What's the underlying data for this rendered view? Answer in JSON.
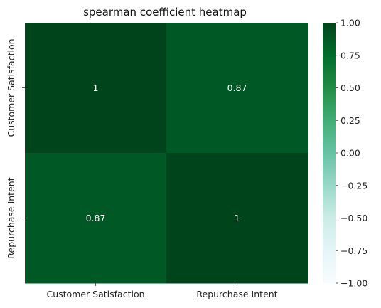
{
  "chart_data": {
    "type": "heatmap",
    "title": "spearman coefficient heatmap",
    "x_categories": [
      "Customer Satisfaction",
      "Repurchase Intent"
    ],
    "y_categories": [
      "Customer Satisfaction",
      "Repurchase Intent"
    ],
    "values": [
      [
        1.0,
        0.87
      ],
      [
        0.87,
        1.0
      ]
    ],
    "annotations": [
      [
        "1",
        "0.87"
      ],
      [
        "0.87",
        "1"
      ]
    ],
    "colorbar": {
      "range": [
        -1.0,
        1.0
      ],
      "ticks": [
        "1.00",
        "0.75",
        "0.50",
        "0.25",
        "0.00",
        "−0.25",
        "−0.50",
        "−0.75",
        "−1.00"
      ],
      "tick_values": [
        1.0,
        0.75,
        0.5,
        0.25,
        0.0,
        -0.25,
        -0.5,
        -0.75,
        -1.0
      ],
      "colormap": "BuGn",
      "color_stops": [
        "#f7fcfd",
        "#e5f5f9",
        "#ccece6",
        "#99d8c9",
        "#66c2a4",
        "#41ae76",
        "#238b45",
        "#006d2c",
        "#00441b"
      ]
    }
  }
}
